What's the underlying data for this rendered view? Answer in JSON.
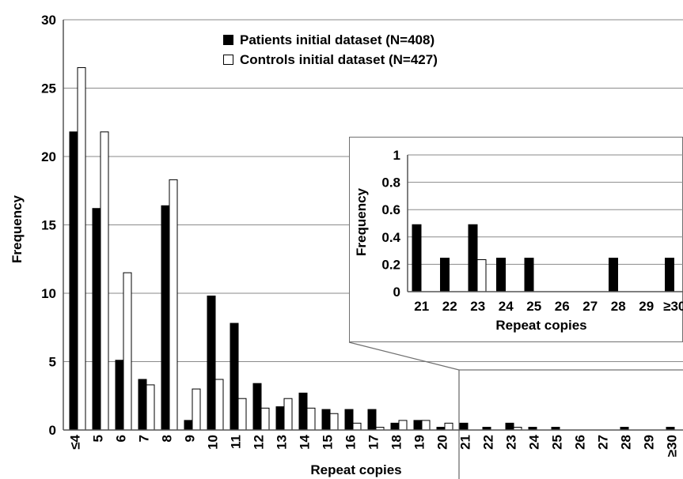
{
  "chart_data": [
    {
      "type": "bar",
      "title": "",
      "xlabel": "Repeat copies",
      "ylabel": "Frequency",
      "ylim": [
        0,
        30
      ],
      "yticks": [
        "0",
        "5",
        "10",
        "15",
        "20",
        "25",
        "30"
      ],
      "grid": true,
      "legend_position": "top-center",
      "categories": [
        "≤4",
        "5",
        "6",
        "7",
        "8",
        "9",
        "10",
        "11",
        "12",
        "13",
        "14",
        "15",
        "16",
        "17",
        "18",
        "19",
        "20",
        "21",
        "22",
        "23",
        "24",
        "25",
        "26",
        "27",
        "28",
        "29",
        "≥30"
      ],
      "series": [
        {
          "name": "Patients initial dataset (N=408)",
          "color": "#000000",
          "values": [
            21.8,
            16.2,
            5.1,
            3.7,
            16.4,
            0.7,
            9.8,
            7.8,
            3.4,
            1.7,
            2.7,
            1.5,
            1.5,
            1.5,
            0.5,
            0.7,
            0.2,
            0.5,
            0.2,
            0.5,
            0.2,
            0.2,
            0,
            0,
            0.2,
            0,
            0.2
          ]
        },
        {
          "name": "Controls initial dataset (N=427)",
          "color": "#ffffff",
          "values": [
            26.5,
            21.8,
            11.5,
            3.3,
            18.3,
            3.0,
            3.7,
            2.3,
            1.6,
            2.3,
            1.6,
            1.2,
            0.5,
            0.2,
            0.7,
            0.7,
            0.5,
            0,
            0,
            0.2,
            0,
            0,
            0,
            0,
            0,
            0,
            0
          ]
        }
      ]
    },
    {
      "type": "bar",
      "title": "",
      "xlabel": "Repeat copies",
      "ylabel": "Frequency",
      "ylim": [
        0,
        1
      ],
      "yticks": [
        "0",
        "0.2",
        "0.4",
        "0.6",
        "0.8",
        "1"
      ],
      "grid": true,
      "categories": [
        "21",
        "22",
        "23",
        "24",
        "25",
        "26",
        "27",
        "28",
        "29",
        "≥30"
      ],
      "series": [
        {
          "name": "Patients initial dataset (N=408)",
          "color": "#000000",
          "values": [
            0.49,
            0.245,
            0.49,
            0.245,
            0.245,
            0,
            0,
            0.245,
            0,
            0.245
          ]
        },
        {
          "name": "Controls initial dataset (N=427)",
          "color": "#ffffff",
          "values": [
            0,
            0,
            0.234,
            0,
            0,
            0,
            0,
            0,
            0,
            0
          ]
        }
      ]
    }
  ]
}
